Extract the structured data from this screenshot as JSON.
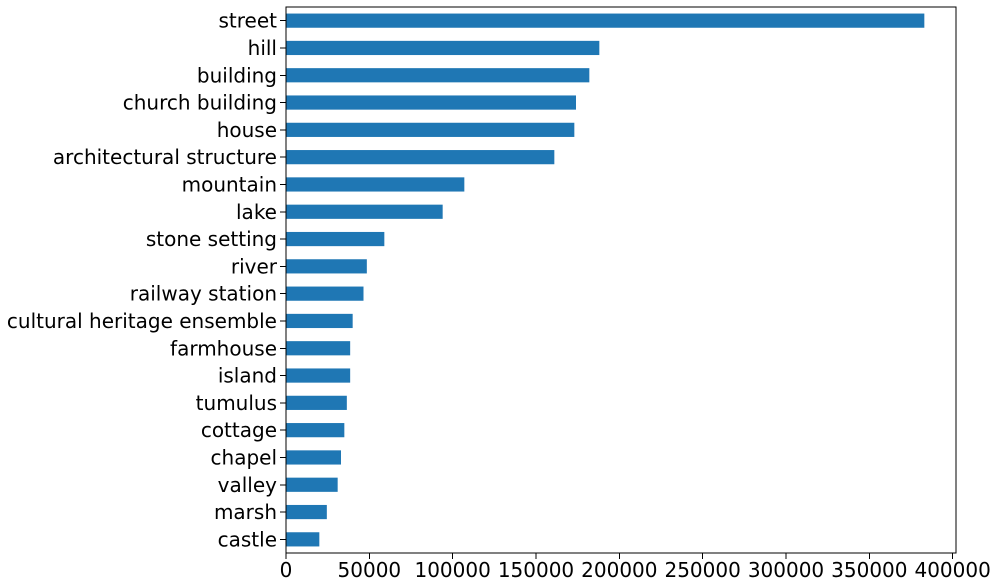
{
  "chart_data": {
    "type": "bar",
    "orientation": "horizontal",
    "categories": [
      "street",
      "hill",
      "building",
      "church building",
      "house",
      "architectural structure",
      "mountain",
      "lake",
      "stone setting",
      "river",
      "railway station",
      "cultural heritage ensemble",
      "farmhouse",
      "island",
      "tumulus",
      "cottage",
      "chapel",
      "valley",
      "marsh",
      "castle"
    ],
    "values": [
      383000,
      188000,
      182000,
      174000,
      173000,
      161000,
      107000,
      94000,
      59000,
      48500,
      46500,
      40000,
      38500,
      38500,
      36500,
      35000,
      33000,
      31000,
      24500,
      20000
    ],
    "xticks": [
      "0",
      "50000",
      "100000",
      "150000",
      "200000",
      "250000",
      "300000",
      "350000",
      "400000"
    ],
    "xlim": [
      0,
      402000
    ],
    "title": "",
    "xlabel": "",
    "ylabel": "",
    "grid": false,
    "bar_color": "#1f77b4"
  }
}
